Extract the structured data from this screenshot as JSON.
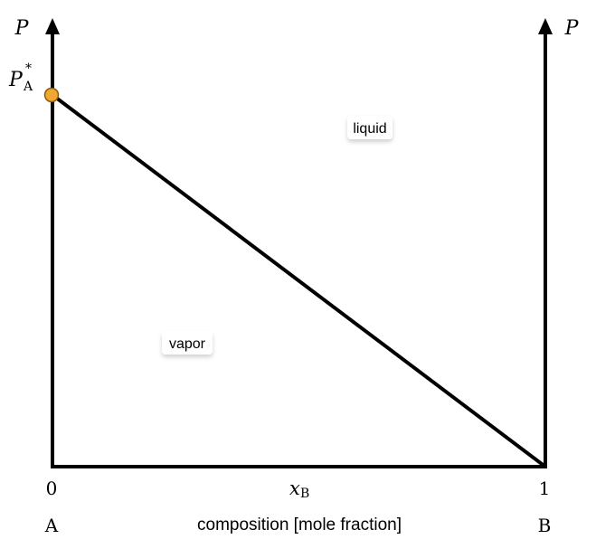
{
  "left_axis_label": {
    "symbol": "P"
  },
  "right_axis_label": {
    "symbol": "P"
  },
  "pure_pressure_label": {
    "symbol": "P",
    "subscript": "A",
    "superscript": "*"
  },
  "x_variable": {
    "symbol": "x",
    "subscript": "B"
  },
  "x_ticks": [
    "0",
    "1"
  ],
  "end_labels": {
    "left": "A",
    "right": "B"
  },
  "x_axis_title": "composition [mole fraction]",
  "region_labels": {
    "upper": "liquid",
    "lower": "vapor"
  },
  "colors": {
    "marker_fill": "#f0a830",
    "marker_stroke": "#8a5a10",
    "line": "#000000"
  }
}
